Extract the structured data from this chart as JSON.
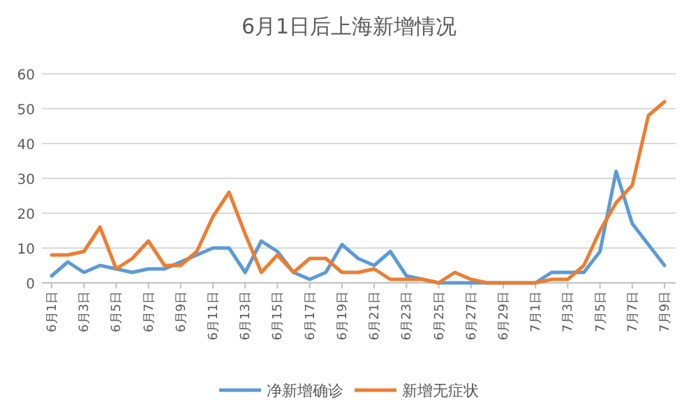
{
  "chart_data": {
    "type": "line",
    "title": "6月1日后上海新增情况",
    "categories": [
      "6月1日",
      null,
      "6月3日",
      null,
      "6月5日",
      null,
      "6月7日",
      null,
      "6月9日",
      null,
      "6月11日",
      null,
      "6月13日",
      null,
      "6月15日",
      null,
      "6月17日",
      null,
      "6月19日",
      null,
      "6月21日",
      null,
      "6月23日",
      null,
      "6月25日",
      null,
      "6月27日",
      null,
      "6月29日",
      null,
      "7月1日",
      null,
      "7月3日",
      null,
      "7月5日",
      null,
      "7月7日",
      null,
      "7月9日"
    ],
    "series": [
      {
        "name": "净新增确诊",
        "color": "#5b9bd5",
        "values": [
          2,
          6,
          3,
          5,
          4,
          3,
          4,
          4,
          6,
          8,
          10,
          10,
          3,
          12,
          9,
          3,
          1,
          3,
          11,
          7,
          5,
          9,
          2,
          1,
          0,
          0,
          0,
          0,
          0,
          0,
          0,
          3,
          3,
          3,
          9,
          32,
          17,
          11,
          5
        ]
      },
      {
        "name": "新增无症状",
        "color": "#ed7d31",
        "values": [
          8,
          8,
          9,
          16,
          4,
          7,
          12,
          5,
          5,
          9,
          19,
          26,
          14,
          3,
          8,
          3,
          7,
          7,
          3,
          3,
          4,
          1,
          1,
          1,
          0,
          3,
          1,
          0,
          0,
          0,
          0,
          1,
          1,
          5,
          15,
          23,
          28,
          48,
          52
        ]
      }
    ],
    "ylim": [
      0,
      60
    ],
    "yticks": [
      0,
      10,
      20,
      30,
      40,
      50,
      60
    ],
    "grid": "y",
    "legend": "bottom"
  }
}
